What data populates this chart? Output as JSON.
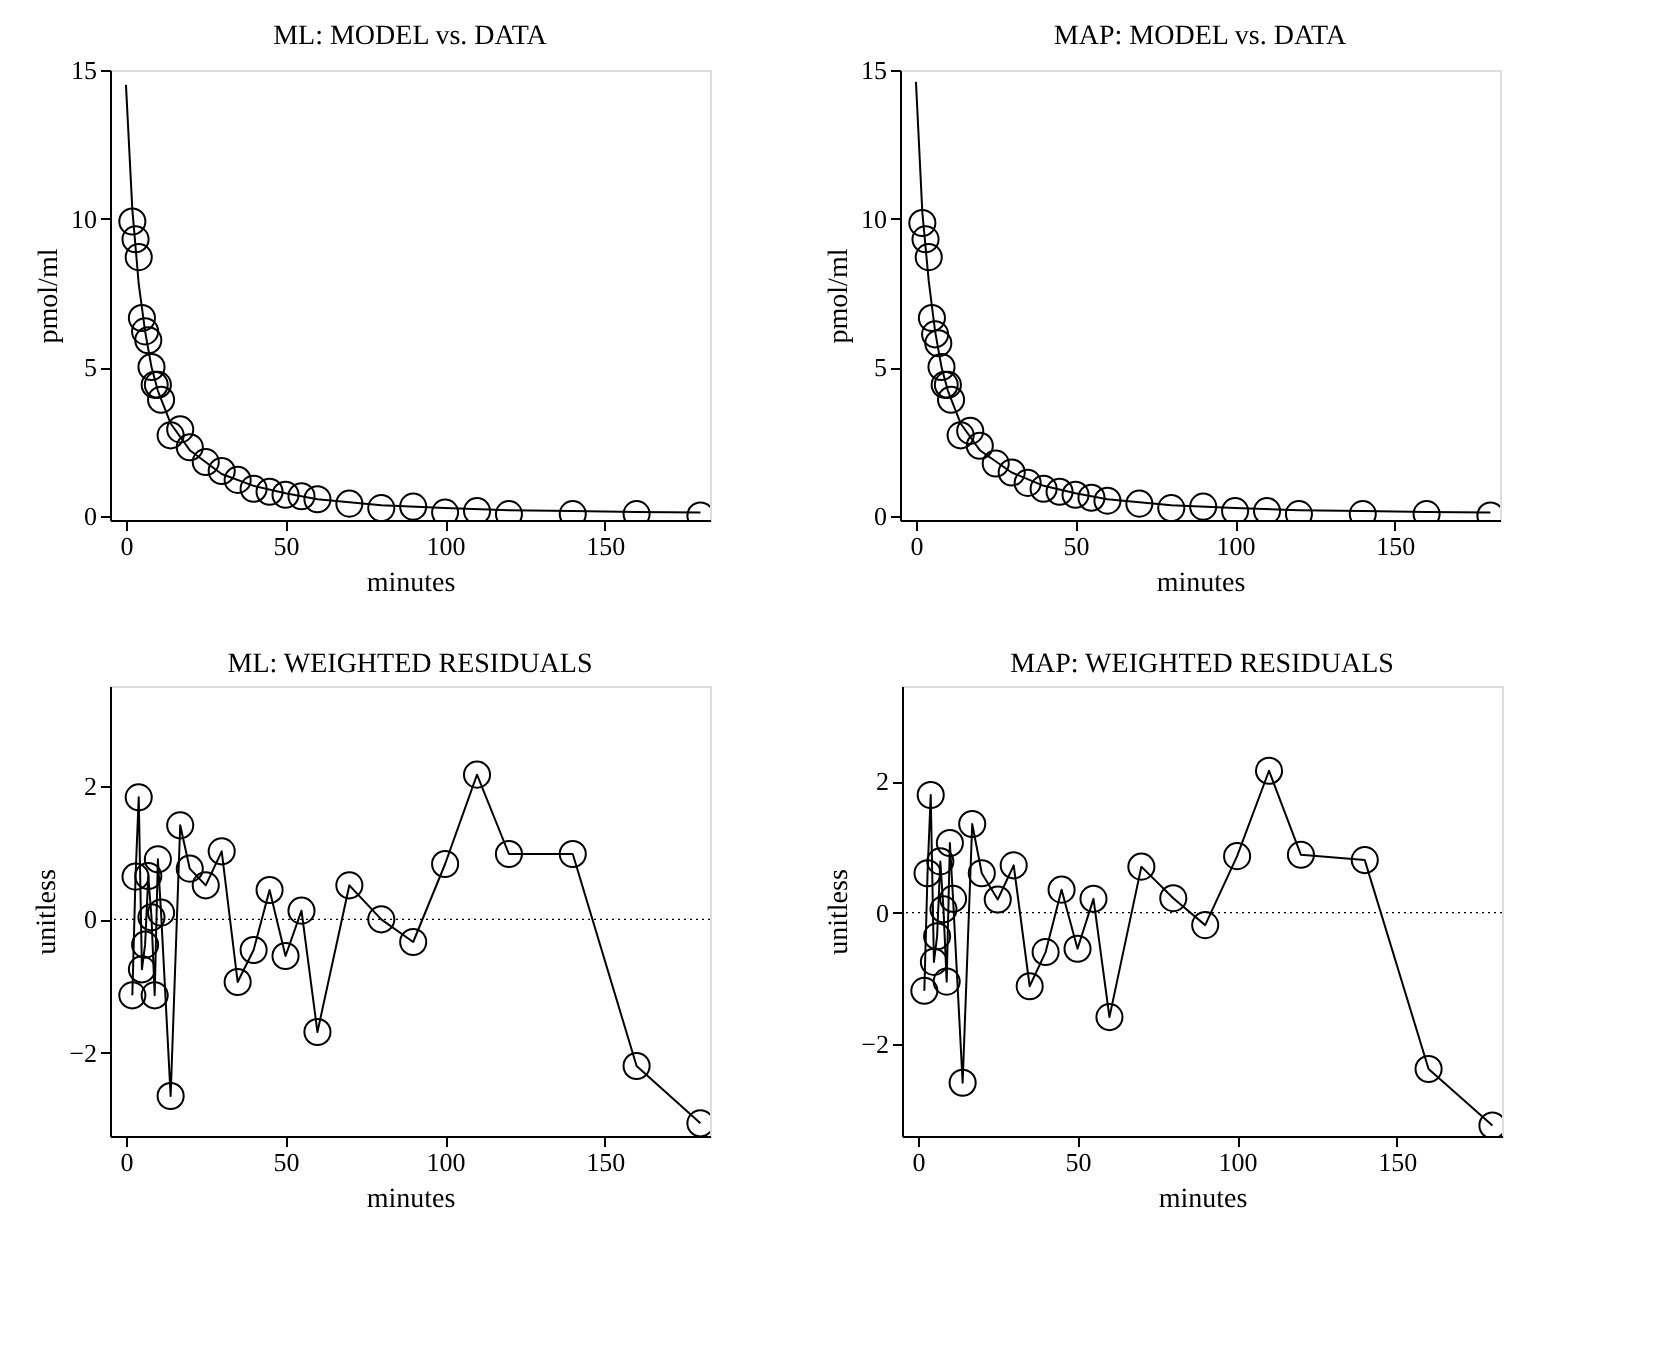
{
  "chart_data": [
    {
      "type": "scatter",
      "title": "ML: MODEL vs. DATA",
      "xlabel": "minutes",
      "ylabel": "pmol/ml",
      "xlim": [
        -5,
        183
      ],
      "ylim": [
        -0.15,
        15
      ],
      "xticks": [
        0,
        50,
        100,
        150
      ],
      "yticks": [
        0,
        5,
        10,
        15
      ],
      "grid": false,
      "series": [
        {
          "marker": "circle",
          "color": "#000000",
          "x": [
            2,
            3,
            4,
            5,
            6,
            7,
            8,
            9,
            10,
            11,
            14,
            17,
            20,
            25,
            30,
            35,
            40,
            45,
            50,
            55,
            60,
            70,
            80,
            90,
            100,
            110,
            120,
            140,
            160,
            180
          ],
          "values": [
            9.9,
            9.3,
            8.7,
            6.65,
            6.2,
            5.9,
            5.0,
            4.4,
            4.4,
            3.9,
            2.7,
            2.9,
            2.3,
            1.8,
            1.5,
            1.2,
            0.9,
            0.8,
            0.7,
            0.65,
            0.55,
            0.4,
            0.25,
            0.3,
            0.1,
            0.15,
            0.05,
            0.05,
            0.05,
            0.0
          ]
        },
        {
          "type": "line",
          "marker": "none",
          "line_style": "solid",
          "color": "#000000",
          "x": [
            0,
            2,
            4,
            6,
            8,
            10,
            14,
            20,
            30,
            40,
            50,
            60,
            80,
            100,
            120,
            140,
            160,
            180
          ],
          "values": [
            14.5,
            10.3,
            7.8,
            6.2,
            5.0,
            4.2,
            3.1,
            2.2,
            1.4,
            1.0,
            0.75,
            0.55,
            0.35,
            0.25,
            0.18,
            0.15,
            0.12,
            0.1
          ]
        }
      ]
    },
    {
      "type": "scatter",
      "title": "MAP: MODEL vs. DATA",
      "xlabel": "minutes",
      "ylabel": "pmol/ml",
      "xlim": [
        -5,
        183
      ],
      "ylim": [
        -0.15,
        15
      ],
      "xticks": [
        0,
        50,
        100,
        150
      ],
      "yticks": [
        0,
        5,
        10,
        15
      ],
      "grid": false,
      "series": [
        {
          "marker": "circle",
          "color": "#000000",
          "x": [
            2,
            3,
            4,
            5,
            6,
            7,
            8,
            9,
            10,
            11,
            14,
            17,
            20,
            25,
            30,
            35,
            40,
            45,
            50,
            55,
            60,
            70,
            80,
            90,
            100,
            110,
            120,
            140,
            160,
            180
          ],
          "values": [
            9.85,
            9.3,
            8.7,
            6.65,
            6.1,
            5.8,
            5.0,
            4.4,
            4.4,
            3.9,
            2.7,
            2.85,
            2.35,
            1.75,
            1.45,
            1.1,
            0.9,
            0.8,
            0.7,
            0.6,
            0.5,
            0.4,
            0.25,
            0.3,
            0.15,
            0.15,
            0.05,
            0.05,
            0.05,
            0.0
          ]
        },
        {
          "type": "line",
          "marker": "none",
          "line_style": "solid",
          "color": "#000000",
          "x": [
            0,
            2,
            4,
            6,
            8,
            10,
            14,
            20,
            30,
            40,
            50,
            60,
            80,
            100,
            120,
            140,
            160,
            180
          ],
          "values": [
            14.6,
            10.2,
            7.9,
            6.2,
            5.0,
            4.2,
            3.1,
            2.2,
            1.45,
            1.0,
            0.75,
            0.55,
            0.35,
            0.25,
            0.18,
            0.15,
            0.12,
            0.1
          ]
        }
      ]
    },
    {
      "type": "line",
      "title": "ML: WEIGHTED RESIDUALS",
      "xlabel": "minutes",
      "ylabel": "unitless",
      "xlim": [
        -5,
        183
      ],
      "ylim": [
        -3.25,
        3.5
      ],
      "xticks": [
        0,
        50,
        100,
        150
      ],
      "yticks": [
        {
          "value": -2,
          "label": "−2"
        },
        0,
        2
      ],
      "grid": false,
      "ref_lines": [
        {
          "axis": "y",
          "value": 0,
          "color": "#000000",
          "line_style": "dotted"
        }
      ],
      "series": [
        {
          "marker": "circle",
          "line_style": "solid",
          "color": "#000000",
          "x": [
            2,
            3,
            4,
            5,
            6,
            7,
            8,
            9,
            10,
            11,
            14,
            17,
            20,
            25,
            30,
            35,
            40,
            45,
            50,
            55,
            60,
            70,
            80,
            90,
            100,
            110,
            120,
            140,
            160,
            180
          ],
          "values": [
            -1.14,
            0.64,
            1.83,
            -0.75,
            -0.38,
            0.65,
            0.03,
            -1.14,
            0.9,
            0.1,
            -2.65,
            1.41,
            0.76,
            0.51,
            1.02,
            -0.94,
            -0.46,
            0.44,
            -0.55,
            0.13,
            -1.69,
            0.51,
            0.0,
            -0.34,
            0.83,
            2.17,
            0.98,
            0.98,
            -2.2,
            -3.06
          ]
        }
      ]
    },
    {
      "type": "line",
      "title": "MAP: WEIGHTED RESIDUALS",
      "xlabel": "minutes",
      "ylabel": "unitless",
      "xlim": [
        -5,
        183
      ],
      "ylim": [
        -3.4,
        3.45
      ],
      "xticks": [
        0,
        50,
        100,
        150
      ],
      "yticks": [
        {
          "value": -2,
          "label": "−2"
        },
        0,
        2
      ],
      "grid": false,
      "ref_lines": [
        {
          "axis": "y",
          "value": 0,
          "color": "#000000",
          "line_style": "dotted"
        }
      ],
      "series": [
        {
          "marker": "circle",
          "line_style": "solid",
          "color": "#000000",
          "x": [
            2,
            3,
            4,
            5,
            6,
            7,
            8,
            9,
            10,
            11,
            14,
            17,
            20,
            25,
            30,
            35,
            40,
            45,
            50,
            55,
            60,
            70,
            80,
            90,
            100,
            110,
            120,
            140,
            160,
            180
          ],
          "values": [
            -1.19,
            0.6,
            1.79,
            -0.75,
            -0.36,
            0.78,
            0.05,
            -1.05,
            1.06,
            0.21,
            -2.59,
            1.35,
            0.6,
            0.2,
            0.72,
            -1.12,
            -0.6,
            0.35,
            -0.55,
            0.21,
            -1.59,
            0.7,
            0.22,
            -0.19,
            0.86,
            2.16,
            0.88,
            0.8,
            -2.38,
            -3.24
          ]
        }
      ]
    }
  ]
}
